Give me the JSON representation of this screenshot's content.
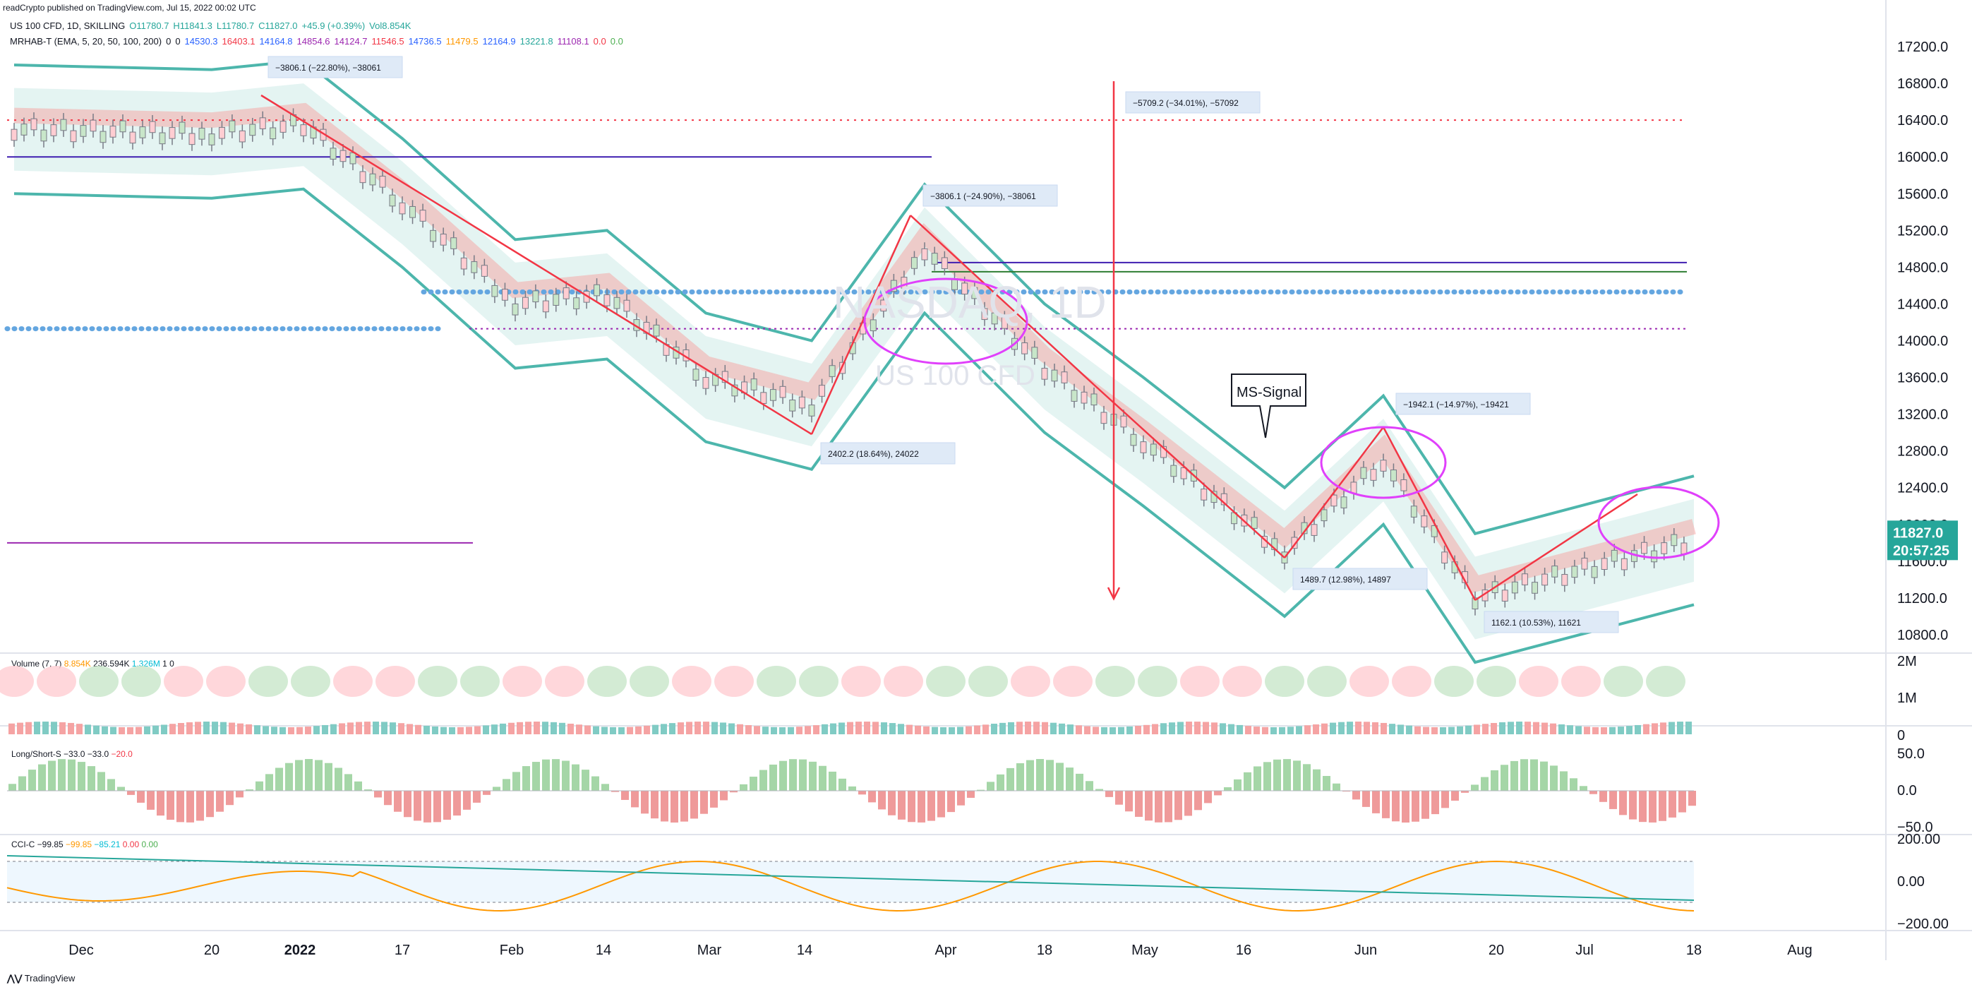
{
  "header": {
    "published": "readCrypto published on TradingView.com, Jul 15, 2022 00:02 UTC",
    "ohlc_line": [
      "US 100 CFD, 1D, SKILLING",
      "O11780.7",
      "H11841.3",
      "L11780.7",
      "C11827.0",
      "+45.9 (+0.39%)",
      "Vol8.854K"
    ],
    "indicator_line": [
      "MRHAB-T (EMA, 5, 20, 50, 100, 200)",
      "0",
      "0",
      "14530.3",
      "16403.1",
      "14164.8",
      "14854.6",
      "14124.7",
      "11546.5",
      "14736.5",
      "11479.5",
      "12164.9",
      "13221.8",
      "11108.1",
      "0.0",
      "0.0"
    ],
    "indicator_colors": [
      "#131722",
      "#131722",
      "#131722",
      "#2962ff",
      "#f23645",
      "#2962ff",
      "#9c27b0",
      "#9c27b0",
      "#f23645",
      "#2962ff",
      "#ff9800",
      "#2962ff",
      "#26a69a",
      "#9c27b0",
      "#f23645",
      "#4caf50"
    ]
  },
  "watermark": {
    "symbol": "NASDAQ, 1D",
    "name": "US 100 CFD"
  },
  "price_axis": {
    "ticks": [
      "17200.0",
      "16800.0",
      "16400.0",
      "16000.0",
      "15600.0",
      "15200.0",
      "14800.0",
      "14400.0",
      "14000.0",
      "13600.0",
      "13200.0",
      "12800.0",
      "12400.0",
      "12000.0",
      "11600.0",
      "11200.0",
      "10800.0"
    ],
    "last_price": "11827.0",
    "countdown": "20:57:25",
    "last_color": "#26a69a"
  },
  "time_axis": {
    "labels": [
      "Dec",
      "20",
      "2022",
      "17",
      "Feb",
      "14",
      "Mar",
      "14",
      "Apr",
      "18",
      "May",
      "16",
      "Jun",
      "20",
      "Jul",
      "18",
      "Aug"
    ]
  },
  "measures": [
    "−3806.1 (−22.80%), −38061",
    "−5709.2 (−34.01%), −57092",
    "−3806.1 (−24.90%), −38061",
    "2402.2 (18.64%), 24022",
    "−1942.1 (−14.97%), −19421",
    "1489.7 (12.98%), 14897",
    "1162.1 (10.53%), 11621"
  ],
  "callout": "MS-Signal",
  "volume_pane": {
    "title": "Volume (7, 7)",
    "values": [
      "8.854K",
      "236.594K",
      "1.326M",
      "1",
      "0"
    ],
    "ticks": [
      "2M",
      "1M",
      "0"
    ]
  },
  "ls_pane": {
    "title": "Long/Short-S",
    "values": [
      "−33.0",
      "−33.0",
      "−20.0"
    ],
    "ticks": [
      "50.0",
      "0.0",
      "−50.0"
    ]
  },
  "cci_pane": {
    "title": "CCI-C",
    "values": [
      "−99.85",
      "−99.85",
      "−85.21",
      "0.00",
      "0.00"
    ],
    "ticks": [
      "200.00",
      "0.00",
      "−200.00"
    ]
  },
  "footer": {
    "brand": "TradingView"
  },
  "chart_data": {
    "type": "line",
    "title": "US 100 CFD, 1D, SKILLING",
    "x": [
      "Dec",
      "20",
      "2022",
      "17",
      "Feb",
      "14",
      "Mar",
      "14",
      "Apr",
      "18",
      "May",
      "16",
      "Jun",
      "20",
      "Jul"
    ],
    "series": [
      {
        "name": "US 100 CFD",
        "values": [
          16300,
          16250,
          16350,
          15500,
          14400,
          14500,
          13600,
          13300,
          15000,
          13700,
          12900,
          11700,
          12700,
          11200,
          11827
        ]
      }
    ],
    "ylim": [
      10600,
      17400
    ],
    "grid": false,
    "legend": "top-left"
  }
}
